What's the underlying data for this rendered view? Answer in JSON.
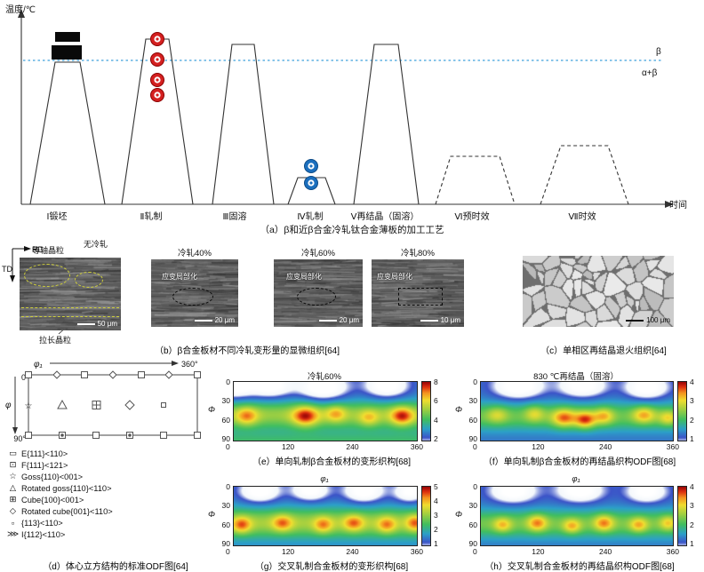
{
  "panel_a": {
    "ylabel": "温度/℃",
    "xlabel": "时间",
    "beta_label": "β",
    "alpha_beta_label": "α+β",
    "stages": [
      "Ⅰ锻坯",
      "Ⅱ轧制",
      "Ⅲ固溶",
      "Ⅳ轧制",
      "Ⅴ再结晶（固溶）",
      "Ⅵ预时效",
      "Ⅶ时效"
    ],
    "caption": "（a）β和近β合金冷轧钛合金薄板的加工工艺"
  },
  "panel_b": {
    "rd": "RD",
    "td": "TD",
    "label_equiaxed": "等轴晶粒",
    "label_no_rolling": "无冷轧",
    "label_elongated": "拉长晶粒",
    "micrographs": [
      {
        "title": "",
        "scale": "50 μm"
      },
      {
        "title": "冷轧40%",
        "annotation": "应变局部化",
        "scale": "20 μm"
      },
      {
        "title": "冷轧60%",
        "annotation": "应变局部化",
        "scale": "20 μm"
      },
      {
        "title": "冷轧80%",
        "annotation": "应变局部化",
        "scale": "10 μm"
      }
    ],
    "caption": "（b）β合金板材不同冷轧变形量的显微组织[64]"
  },
  "panel_c": {
    "scale": "100 μm",
    "caption": "（c）单相区再结晶退火组织[64]"
  },
  "panel_d": {
    "phi1": "φ₁",
    "phi": "φ",
    "deg0": "0",
    "deg90": "90°",
    "deg360": "360°",
    "legend": [
      {
        "symbol": "▭",
        "label": "E{111}<110>"
      },
      {
        "symbol": "⊡",
        "label": "F{111}<121>"
      },
      {
        "symbol": "☆",
        "label": "Goss{110}<001>"
      },
      {
        "symbol": "△",
        "label": "Rotated goss{110}<110>"
      },
      {
        "symbol": "⊞",
        "label": "Cube{100}<001>"
      },
      {
        "symbol": "◇",
        "label": "Rotated cube{001}<110>"
      },
      {
        "symbol": "▫",
        "label": "{113}<110>"
      },
      {
        "symbol": "⋙",
        "label": "I{112}<110>"
      }
    ],
    "caption": "（d）体心立方结构的标准ODF图[64]"
  },
  "chart_data": [
    {
      "id": "e",
      "type": "heatmap",
      "title": "冷轧60%",
      "xlabel": "",
      "ylabel": "Φ",
      "x_range": [
        0,
        360
      ],
      "y_range": [
        0,
        90
      ],
      "x_ticks": [
        0,
        120,
        240,
        360
      ],
      "y_ticks": [
        0,
        30,
        60,
        90
      ],
      "colorbar_ticks": [
        8,
        6,
        4,
        2
      ],
      "colorbar_range": [
        2,
        8
      ],
      "caption": "（e）单向轧制β合金板材的变形织构[68]",
      "base": 0.24,
      "bands": [
        {
          "phi": 50,
          "sigma": 15,
          "amp": 0.34
        },
        {
          "phi": 92,
          "sigma": 12,
          "amp": 0.18
        }
      ],
      "spots": [
        {
          "x": 25,
          "phi": 52,
          "sx": 15,
          "sy": 10,
          "a": 0.3
        },
        {
          "x": 140,
          "phi": 52,
          "sx": 18,
          "sy": 11,
          "a": 0.42
        },
        {
          "x": 200,
          "phi": 48,
          "sx": 14,
          "sy": 9,
          "a": 0.25
        },
        {
          "x": 265,
          "phi": 55,
          "sx": 14,
          "sy": 9,
          "a": 0.22
        },
        {
          "x": 330,
          "phi": 52,
          "sx": 16,
          "sy": 10,
          "a": 0.4
        },
        {
          "x": 0,
          "phi": 8,
          "sx": 26,
          "sy": 13,
          "a": -0.28
        },
        {
          "x": 70,
          "phi": 5,
          "sx": 30,
          "sy": 14,
          "a": -0.3
        },
        {
          "x": 175,
          "phi": 8,
          "sx": 34,
          "sy": 15,
          "a": -0.32
        },
        {
          "x": 300,
          "phi": 5,
          "sx": 30,
          "sy": 14,
          "a": -0.3
        }
      ]
    },
    {
      "id": "f",
      "type": "heatmap",
      "title": "830 ℃再结晶（固溶）",
      "xlabel": "",
      "ylabel": "Φ",
      "x_range": [
        0,
        360
      ],
      "y_range": [
        0,
        90
      ],
      "x_ticks": [
        0,
        120,
        240,
        360
      ],
      "y_ticks": [
        0,
        30,
        60,
        90
      ],
      "colorbar_ticks": [
        4,
        3,
        2,
        1
      ],
      "colorbar_range": [
        1,
        4
      ],
      "caption": "（f）单向轧制β合金板材的再结晶织构ODF图[68]",
      "base": 0.22,
      "bands": [
        {
          "phi": 52,
          "sigma": 15,
          "amp": 0.28
        }
      ],
      "spots": [
        {
          "x": 30,
          "phi": 50,
          "sx": 14,
          "sy": 9,
          "a": 0.2
        },
        {
          "x": 100,
          "phi": 48,
          "sx": 13,
          "sy": 9,
          "a": 0.22
        },
        {
          "x": 155,
          "phi": 55,
          "sx": 16,
          "sy": 10,
          "a": 0.4
        },
        {
          "x": 195,
          "phi": 58,
          "sx": 14,
          "sy": 9,
          "a": 0.45
        },
        {
          "x": 230,
          "phi": 52,
          "sx": 13,
          "sy": 9,
          "a": 0.3
        },
        {
          "x": 305,
          "phi": 50,
          "sx": 15,
          "sy": 9,
          "a": 0.32
        },
        {
          "x": 350,
          "phi": 55,
          "sx": 12,
          "sy": 8,
          "a": 0.25
        },
        {
          "x": 70,
          "phi": 6,
          "sx": 32,
          "sy": 14,
          "a": -0.3
        },
        {
          "x": 190,
          "phi": 5,
          "sx": 30,
          "sy": 13,
          "a": -0.28
        },
        {
          "x": 310,
          "phi": 8,
          "sx": 28,
          "sy": 13,
          "a": -0.28
        }
      ]
    },
    {
      "id": "g",
      "type": "heatmap",
      "title": "φ₁",
      "xlabel": "",
      "ylabel": "Φ",
      "x_range": [
        0,
        360
      ],
      "y_range": [
        0,
        90
      ],
      "x_ticks": [
        0,
        120,
        240,
        360
      ],
      "y_ticks": [
        0,
        30,
        60,
        90
      ],
      "colorbar_ticks": [
        5,
        4,
        3,
        2,
        1
      ],
      "colorbar_range": [
        1,
        5
      ],
      "caption": "（g）交叉轧制合金板材的变形织构[68]",
      "base": 0.24,
      "bands": [
        {
          "phi": 55,
          "sigma": 16,
          "amp": 0.36
        }
      ],
      "spots": [
        {
          "x": 15,
          "phi": 58,
          "sx": 13,
          "sy": 9,
          "a": 0.32
        },
        {
          "x": 95,
          "phi": 55,
          "sx": 14,
          "sy": 9,
          "a": 0.3
        },
        {
          "x": 175,
          "phi": 58,
          "sx": 13,
          "sy": 9,
          "a": 0.28
        },
        {
          "x": 235,
          "phi": 55,
          "sx": 14,
          "sy": 9,
          "a": 0.3
        },
        {
          "x": 300,
          "phi": 58,
          "sx": 13,
          "sy": 9,
          "a": 0.28
        },
        {
          "x": 355,
          "phi": 55,
          "sx": 12,
          "sy": 9,
          "a": 0.3
        },
        {
          "x": 50,
          "phi": 6,
          "sx": 28,
          "sy": 13,
          "a": -0.3
        },
        {
          "x": 150,
          "phi": 5,
          "sx": 26,
          "sy": 12,
          "a": -0.28
        },
        {
          "x": 255,
          "phi": 6,
          "sx": 28,
          "sy": 13,
          "a": -0.3
        },
        {
          "x": 345,
          "phi": 8,
          "sx": 22,
          "sy": 12,
          "a": -0.26
        }
      ]
    },
    {
      "id": "h",
      "type": "heatmap",
      "title": "φ₁",
      "xlabel": "",
      "ylabel": "Φ",
      "x_range": [
        0,
        360
      ],
      "y_range": [
        0,
        90
      ],
      "x_ticks": [
        0,
        120,
        240,
        360
      ],
      "y_ticks": [
        0,
        30,
        60,
        90
      ],
      "colorbar_ticks": [
        4,
        3,
        2,
        1
      ],
      "colorbar_range": [
        1,
        4
      ],
      "caption": "（h）交叉轧制合金板材的再结晶织构ODF图[68]",
      "base": 0.22,
      "bands": [
        {
          "phi": 56,
          "sigma": 15,
          "amp": 0.3
        }
      ],
      "spots": [
        {
          "x": 40,
          "phi": 58,
          "sx": 12,
          "sy": 8,
          "a": 0.28
        },
        {
          "x": 105,
          "phi": 55,
          "sx": 13,
          "sy": 9,
          "a": 0.35
        },
        {
          "x": 170,
          "phi": 60,
          "sx": 12,
          "sy": 8,
          "a": 0.3
        },
        {
          "x": 230,
          "phi": 55,
          "sx": 13,
          "sy": 9,
          "a": 0.35
        },
        {
          "x": 295,
          "phi": 58,
          "sx": 12,
          "sy": 8,
          "a": 0.3
        },
        {
          "x": 350,
          "phi": 55,
          "sx": 11,
          "sy": 8,
          "a": 0.25
        },
        {
          "x": 60,
          "phi": 6,
          "sx": 30,
          "sy": 13,
          "a": -0.28
        },
        {
          "x": 185,
          "phi": 5,
          "sx": 30,
          "sy": 13,
          "a": -0.28
        },
        {
          "x": 310,
          "phi": 7,
          "sx": 26,
          "sy": 12,
          "a": -0.26
        }
      ]
    }
  ]
}
